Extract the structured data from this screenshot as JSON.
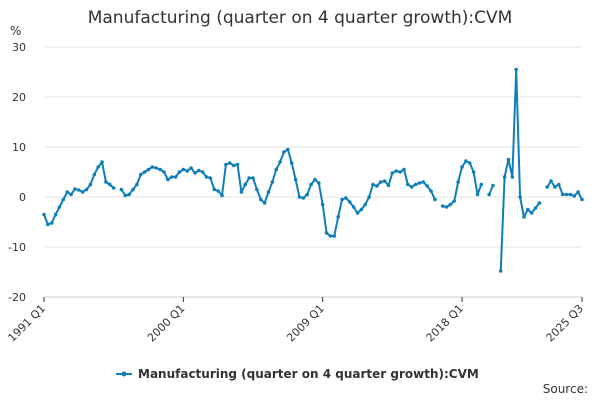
{
  "chart_data": {
    "type": "line",
    "title": "Manufacturing (quarter on 4 quarter growth):CVM",
    "ylabel": "%",
    "ylim": [
      -20,
      30
    ],
    "yticks": [
      -20,
      -10,
      0,
      10,
      20,
      30
    ],
    "xtick_labels": [
      "1991 Q1",
      "2000 Q1",
      "2009 Q1",
      "2018 Q1",
      "2025 Q3"
    ],
    "x_start": "1991 Q1",
    "x_end": "2025 Q3",
    "grid": true,
    "legend_position": "bottom",
    "source_text": "Source:",
    "series": [
      {
        "name": "Manufacturing (quarter on 4 quarter growth):CVM",
        "color": "#0f7fb8",
        "values": [
          -3.5,
          -5.5,
          -5.2,
          -3.5,
          -2.0,
          -0.5,
          1.0,
          0.5,
          1.6,
          1.4,
          1.0,
          1.5,
          2.5,
          4.5,
          6.0,
          7.0,
          3.0,
          2.5,
          1.8,
          null,
          1.5,
          0.3,
          0.5,
          1.5,
          2.5,
          4.5,
          5.0,
          5.5,
          6.0,
          5.8,
          5.5,
          5.0,
          3.5,
          4.0,
          4.0,
          5.0,
          5.5,
          5.2,
          5.8,
          4.8,
          5.3,
          5.0,
          4.0,
          3.8,
          1.5,
          1.2,
          0.3,
          6.5,
          6.8,
          6.3,
          6.5,
          1.0,
          2.5,
          3.8,
          3.8,
          1.5,
          -0.5,
          -1.2,
          1.0,
          3.0,
          5.5,
          7.0,
          9.0,
          9.5,
          6.8,
          3.5,
          0.0,
          -0.2,
          0.5,
          2.5,
          3.5,
          2.8,
          -1.5,
          -7.2,
          -7.8,
          -7.8,
          -4.0,
          -0.5,
          -0.2,
          -1.0,
          -2.0,
          -3.2,
          -2.5,
          -1.5,
          0.0,
          2.5,
          2.2,
          3.0,
          3.2,
          2.3,
          4.8,
          5.2,
          5.0,
          5.5,
          2.5,
          2.0,
          2.5,
          2.8,
          3.0,
          2.2,
          1.2,
          -0.5,
          null,
          -1.8,
          -2.0,
          -1.5,
          -0.8,
          3.0,
          6.0,
          7.2,
          6.8,
          5.0,
          0.5,
          2.5,
          null,
          0.5,
          2.3,
          null,
          -14.8,
          4.0,
          7.5,
          4.0,
          25.5,
          0.0,
          -4.0,
          -2.5,
          -3.2,
          -2.2,
          -1.2,
          null,
          2.0,
          3.2,
          2.0,
          2.5,
          0.5,
          0.5,
          0.5,
          0.2,
          1.0,
          -0.5
        ]
      }
    ]
  }
}
